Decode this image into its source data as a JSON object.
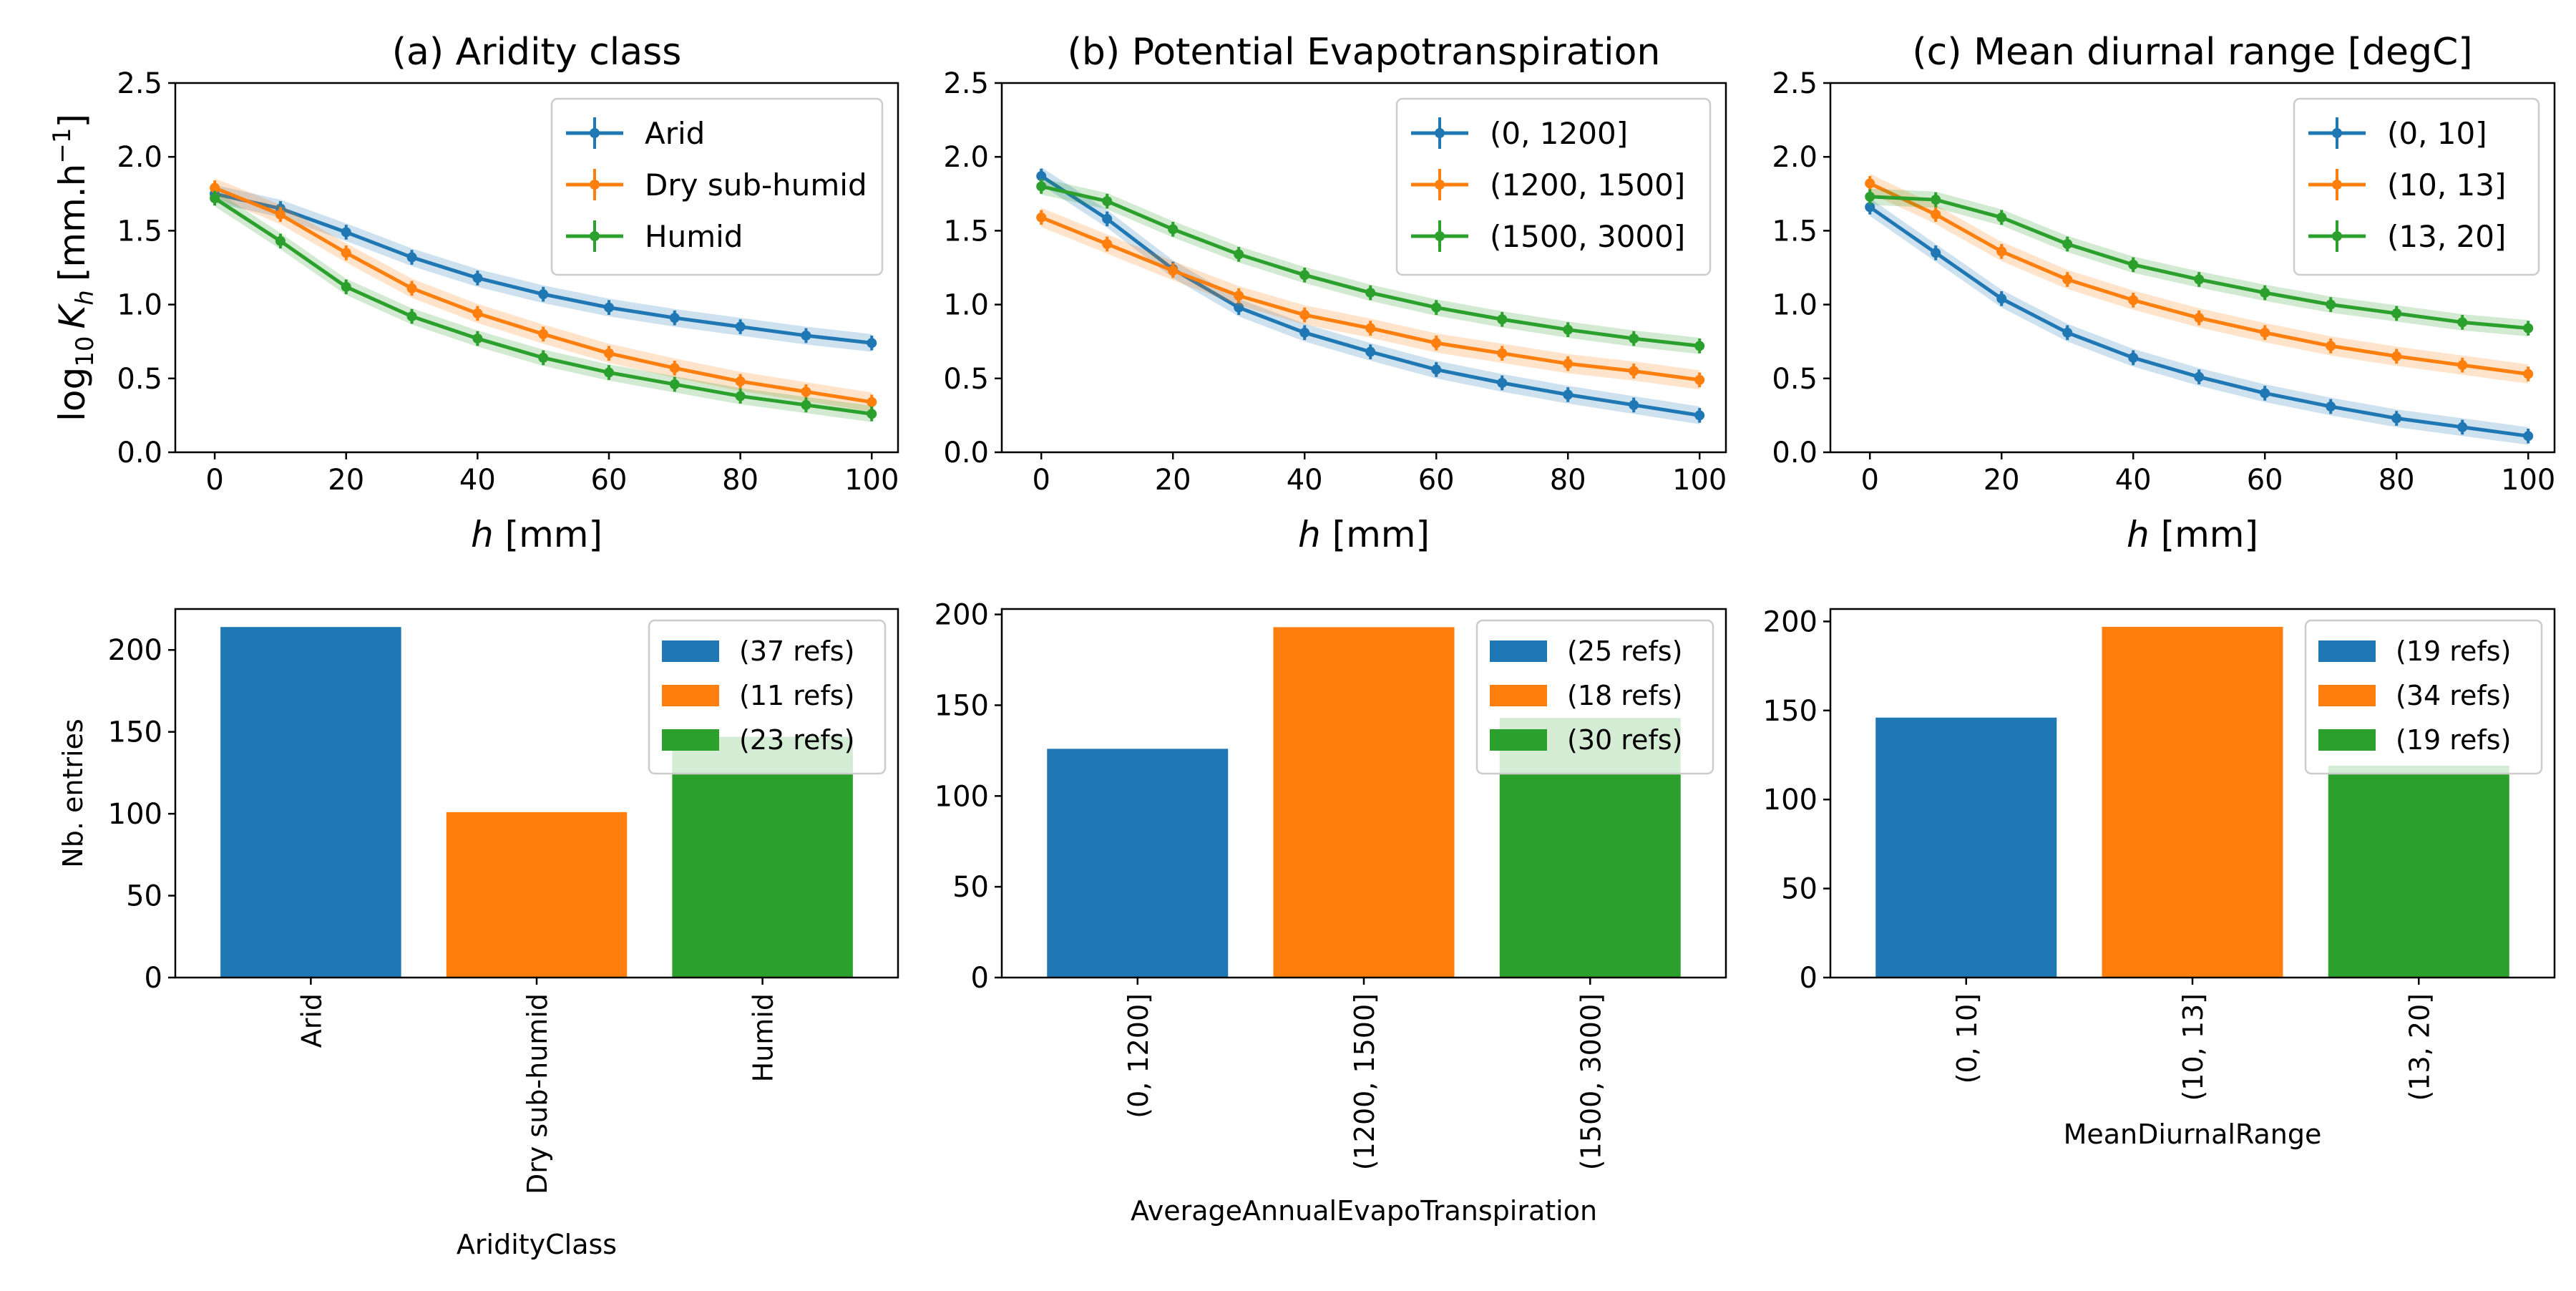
{
  "chart_data": [
    {
      "type": "line",
      "title": "(a) Aridity class",
      "xlabel_var": "h",
      "xlabel_rest": " [mm]",
      "ylabel": "log₁₀ K_h [mm.h⁻¹]",
      "ylabel_parts": {
        "log": "log",
        "sub10": "10",
        "k": "K",
        "subh": "h",
        "unit": "[mm.h",
        "sup": "−1",
        "close": "]"
      },
      "xlim": [
        -6,
        104
      ],
      "ylim": [
        0,
        2.5
      ],
      "xticks": [
        "0",
        "20",
        "40",
        "60",
        "80",
        "100"
      ],
      "yticks": [
        "0.0",
        "0.5",
        "1.0",
        "1.5",
        "2.0",
        "2.5"
      ],
      "legend": "top-right",
      "x": [
        0,
        10,
        20,
        30,
        40,
        50,
        60,
        70,
        80,
        90,
        100
      ],
      "series": [
        {
          "name": "Arid",
          "values": [
            1.75,
            1.65,
            1.49,
            1.32,
            1.18,
            1.07,
            0.98,
            0.91,
            0.85,
            0.79,
            0.74
          ]
        },
        {
          "name": "Dry sub-humid",
          "values": [
            1.79,
            1.61,
            1.35,
            1.11,
            0.94,
            0.8,
            0.67,
            0.57,
            0.48,
            0.41,
            0.34
          ]
        },
        {
          "name": "Humid",
          "values": [
            1.72,
            1.43,
            1.12,
            0.92,
            0.77,
            0.64,
            0.54,
            0.46,
            0.38,
            0.32,
            0.26
          ]
        }
      ]
    },
    {
      "type": "line",
      "title": "(b) Potential Evapotranspiration",
      "xlabel_var": "h",
      "xlabel_rest": " [mm]",
      "xlim": [
        -6,
        104
      ],
      "ylim": [
        0,
        2.5
      ],
      "xticks": [
        "0",
        "20",
        "40",
        "60",
        "80",
        "100"
      ],
      "yticks": [
        "0.0",
        "0.5",
        "1.0",
        "1.5",
        "2.0",
        "2.5"
      ],
      "legend": "top-right",
      "x": [
        0,
        10,
        20,
        30,
        40,
        50,
        60,
        70,
        80,
        90,
        100
      ],
      "series": [
        {
          "name": "(0, 1200]",
          "values": [
            1.87,
            1.58,
            1.24,
            0.98,
            0.81,
            0.68,
            0.56,
            0.47,
            0.39,
            0.32,
            0.25
          ]
        },
        {
          "name": "(1200, 1500]",
          "values": [
            1.59,
            1.41,
            1.23,
            1.06,
            0.93,
            0.84,
            0.74,
            0.67,
            0.6,
            0.55,
            0.49
          ]
        },
        {
          "name": "(1500, 3000]",
          "values": [
            1.8,
            1.7,
            1.51,
            1.34,
            1.2,
            1.08,
            0.98,
            0.9,
            0.83,
            0.77,
            0.72
          ]
        }
      ]
    },
    {
      "type": "line",
      "title": "(c) Mean diurnal range [degC]",
      "xlabel_var": "h",
      "xlabel_rest": " [mm]",
      "xlim": [
        -6,
        104
      ],
      "ylim": [
        0,
        2.5
      ],
      "xticks": [
        "0",
        "20",
        "40",
        "60",
        "80",
        "100"
      ],
      "yticks": [
        "0.0",
        "0.5",
        "1.0",
        "1.5",
        "2.0",
        "2.5"
      ],
      "legend": "top-right",
      "x": [
        0,
        10,
        20,
        30,
        40,
        50,
        60,
        70,
        80,
        90,
        100
      ],
      "series": [
        {
          "name": "(0, 10]",
          "values": [
            1.66,
            1.35,
            1.04,
            0.81,
            0.64,
            0.51,
            0.4,
            0.31,
            0.23,
            0.17,
            0.11
          ]
        },
        {
          "name": "(10, 13]",
          "values": [
            1.82,
            1.61,
            1.36,
            1.17,
            1.03,
            0.91,
            0.81,
            0.72,
            0.65,
            0.59,
            0.53
          ]
        },
        {
          "name": "(13, 20]",
          "values": [
            1.73,
            1.71,
            1.59,
            1.41,
            1.27,
            1.17,
            1.08,
            1.0,
            0.94,
            0.88,
            0.84
          ]
        }
      ]
    },
    {
      "type": "bar",
      "categories": [
        "Arid",
        "Dry sub-humid",
        "Humid"
      ],
      "values": [
        214,
        101,
        147
      ],
      "legend_labels": [
        "(37 refs)",
        "(11 refs)",
        "(23 refs)"
      ],
      "xlabel": "AridityClass",
      "ylabel": "Nb. entries",
      "ylim": [
        0,
        225
      ],
      "yticks": [
        "0",
        "50",
        "100",
        "150",
        "200"
      ],
      "legend": "top-right"
    },
    {
      "type": "bar",
      "categories": [
        "(0, 1200]",
        "(1200, 1500]",
        "(1500, 3000]"
      ],
      "values": [
        126,
        193,
        143
      ],
      "legend_labels": [
        "(25 refs)",
        "(18 refs)",
        "(30 refs)"
      ],
      "xlabel": "AverageAnnualEvapoTranspiration",
      "ylim": [
        0,
        203
      ],
      "yticks": [
        "0",
        "50",
        "100",
        "150",
        "200"
      ],
      "legend": "top-right"
    },
    {
      "type": "bar",
      "categories": [
        "(0, 10]",
        "(10, 13]",
        "(13, 20]"
      ],
      "values": [
        146,
        197,
        119
      ],
      "legend_labels": [
        "(19 refs)",
        "(34 refs)",
        "(19 refs)"
      ],
      "xlabel": "MeanDiurnalRange",
      "ylim": [
        0,
        207
      ],
      "yticks": [
        "0",
        "50",
        "100",
        "150",
        "200"
      ],
      "legend": "top-right"
    }
  ],
  "colors": [
    "#1f77b4",
    "#ff7f0e",
    "#2ca02c"
  ]
}
